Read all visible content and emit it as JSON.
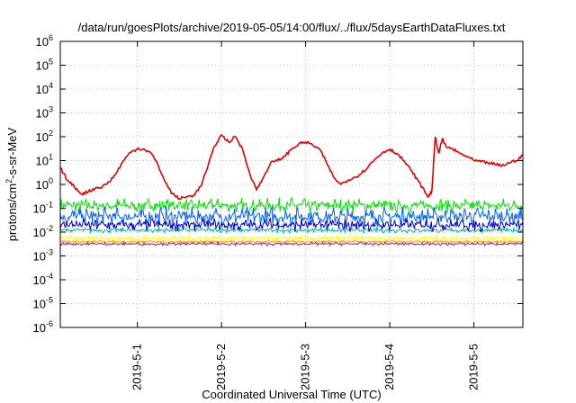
{
  "chart_data": {
    "type": "line",
    "title": "/data/run/goesPlots/archive/2019-05-05/14:00/flux/../flux/5daysEarthDataFluxes.txt",
    "xlabel": "Coordinated Universal Time (UTC)",
    "ylabel": "protons/cm2-s-sr-MeV",
    "ylabel_parts": {
      "base": "protons/cm",
      "sup": "2",
      "rest": "-s-sr-MeV"
    },
    "y_scale": "log",
    "ylim": [
      1e-06,
      1000000.0
    ],
    "y_ticks": [
      {
        "mantissa": "10",
        "exp": "-6",
        "value": 1e-06
      },
      {
        "mantissa": "10",
        "exp": "-5",
        "value": 1e-05
      },
      {
        "mantissa": "10",
        "exp": "-4",
        "value": 0.0001
      },
      {
        "mantissa": "10",
        "exp": "-3",
        "value": 0.001
      },
      {
        "mantissa": "10",
        "exp": "-2",
        "value": 0.01
      },
      {
        "mantissa": "10",
        "exp": "-1",
        "value": 0.1
      },
      {
        "mantissa": "10",
        "exp": "0",
        "value": 1
      },
      {
        "mantissa": "10",
        "exp": "1",
        "value": 10
      },
      {
        "mantissa": "10",
        "exp": "2",
        "value": 100
      },
      {
        "mantissa": "10",
        "exp": "3",
        "value": 1000
      },
      {
        "mantissa": "10",
        "exp": "4",
        "value": 10000
      },
      {
        "mantissa": "10",
        "exp": "5",
        "value": 100000
      },
      {
        "mantissa": "10",
        "exp": "6",
        "value": 1000000
      }
    ],
    "x_start": "2019-04-30 02:00",
    "x_end": "2019-05-05 14:00",
    "x_ticks": [
      {
        "label": "2019-5-1",
        "time": "2019-05-01 00:00"
      },
      {
        "label": "2019-5-2",
        "time": "2019-05-02 00:00"
      },
      {
        "label": "2019-5-3",
        "time": "2019-05-03 00:00"
      },
      {
        "label": "2019-5-4",
        "time": "2019-05-04 00:00"
      },
      {
        "label": "2019-5-5",
        "time": "2019-05-05 00:00"
      }
    ],
    "grid": true,
    "legend": "none",
    "series": [
      {
        "color": "#e00000",
        "points": [
          [
            "2019-04-30 02:00",
            5
          ],
          [
            "2019-04-30 04:00",
            1.5
          ],
          [
            "2019-04-30 06:00",
            0.8
          ],
          [
            "2019-04-30 08:00",
            0.4
          ],
          [
            "2019-04-30 10:00",
            0.5
          ],
          [
            "2019-04-30 12:00",
            0.7
          ],
          [
            "2019-04-30 14:00",
            0.8
          ],
          [
            "2019-04-30 16:00",
            1.3
          ],
          [
            "2019-04-30 18:00",
            3
          ],
          [
            "2019-04-30 20:00",
            10
          ],
          [
            "2019-04-30 22:00",
            22
          ],
          [
            "2019-05-01 00:00",
            32
          ],
          [
            "2019-05-01 02:00",
            30
          ],
          [
            "2019-05-01 04:00",
            20
          ],
          [
            "2019-05-01 06:00",
            6
          ],
          [
            "2019-05-01 08:00",
            1.2
          ],
          [
            "2019-05-01 10:00",
            0.4
          ],
          [
            "2019-05-01 12:00",
            0.25
          ],
          [
            "2019-05-01 14:00",
            0.3
          ],
          [
            "2019-05-01 16:00",
            0.35
          ],
          [
            "2019-05-01 18:00",
            0.8
          ],
          [
            "2019-05-01 20:00",
            5
          ],
          [
            "2019-05-01 22:00",
            40
          ],
          [
            "2019-05-02 00:00",
            120
          ],
          [
            "2019-05-02 02:00",
            60
          ],
          [
            "2019-05-02 04:00",
            100
          ],
          [
            "2019-05-02 06:00",
            30
          ],
          [
            "2019-05-02 08:00",
            3
          ],
          [
            "2019-05-02 10:00",
            0.6
          ],
          [
            "2019-05-02 12:00",
            2
          ],
          [
            "2019-05-02 14:00",
            8
          ],
          [
            "2019-05-02 16:00",
            10
          ],
          [
            "2019-05-02 18:00",
            15
          ],
          [
            "2019-05-02 20:00",
            30
          ],
          [
            "2019-05-02 22:00",
            50
          ],
          [
            "2019-05-03 00:00",
            60
          ],
          [
            "2019-05-03 02:00",
            45
          ],
          [
            "2019-05-03 04:00",
            30
          ],
          [
            "2019-05-03 06:00",
            8
          ],
          [
            "2019-05-03 08:00",
            2
          ],
          [
            "2019-05-03 10:00",
            1
          ],
          [
            "2019-05-03 12:00",
            1.5
          ],
          [
            "2019-05-03 14:00",
            2
          ],
          [
            "2019-05-03 16:00",
            3
          ],
          [
            "2019-05-03 18:00",
            6
          ],
          [
            "2019-05-03 20:00",
            12
          ],
          [
            "2019-05-03 22:00",
            22
          ],
          [
            "2019-05-04 00:00",
            30
          ],
          [
            "2019-05-04 02:00",
            20
          ],
          [
            "2019-05-04 04:00",
            10
          ],
          [
            "2019-05-04 06:00",
            4
          ],
          [
            "2019-05-04 08:00",
            1.5
          ],
          [
            "2019-05-04 10:00",
            0.5
          ],
          [
            "2019-05-04 11:00",
            0.3
          ],
          [
            "2019-05-04 12:00",
            0.5
          ],
          [
            "2019-05-04 13:00",
            100
          ],
          [
            "2019-05-04 14:00",
            20
          ],
          [
            "2019-05-04 15:00",
            80
          ],
          [
            "2019-05-04 16:00",
            40
          ],
          [
            "2019-05-04 18:00",
            30
          ],
          [
            "2019-05-04 20:00",
            20
          ],
          [
            "2019-05-04 22:00",
            15
          ],
          [
            "2019-05-05 00:00",
            10
          ],
          [
            "2019-05-05 02:00",
            9
          ],
          [
            "2019-05-05 04:00",
            8
          ],
          [
            "2019-05-05 06:00",
            7
          ],
          [
            "2019-05-05 08:00",
            6
          ],
          [
            "2019-05-05 10:00",
            8
          ],
          [
            "2019-05-05 12:00",
            10
          ],
          [
            "2019-05-05 14:00",
            16
          ]
        ]
      },
      {
        "color": "#00e000",
        "level": 0.13,
        "jitter": 0.35
      },
      {
        "color": "#0060ff",
        "level": 0.045,
        "jitter": 0.45
      },
      {
        "color": "#00b0b0",
        "level": 0.012,
        "jitter": 0.12
      },
      {
        "color": "#0000d0",
        "level": 0.02,
        "jitter": 0.3
      },
      {
        "color": "#ffff00",
        "level": 0.0055,
        "jitter": 0.12
      },
      {
        "color": "#ffa000",
        "level": 0.004,
        "jitter": 0.06
      },
      {
        "color": "#a02080",
        "level": 0.0032,
        "jitter": 0.08
      }
    ]
  }
}
